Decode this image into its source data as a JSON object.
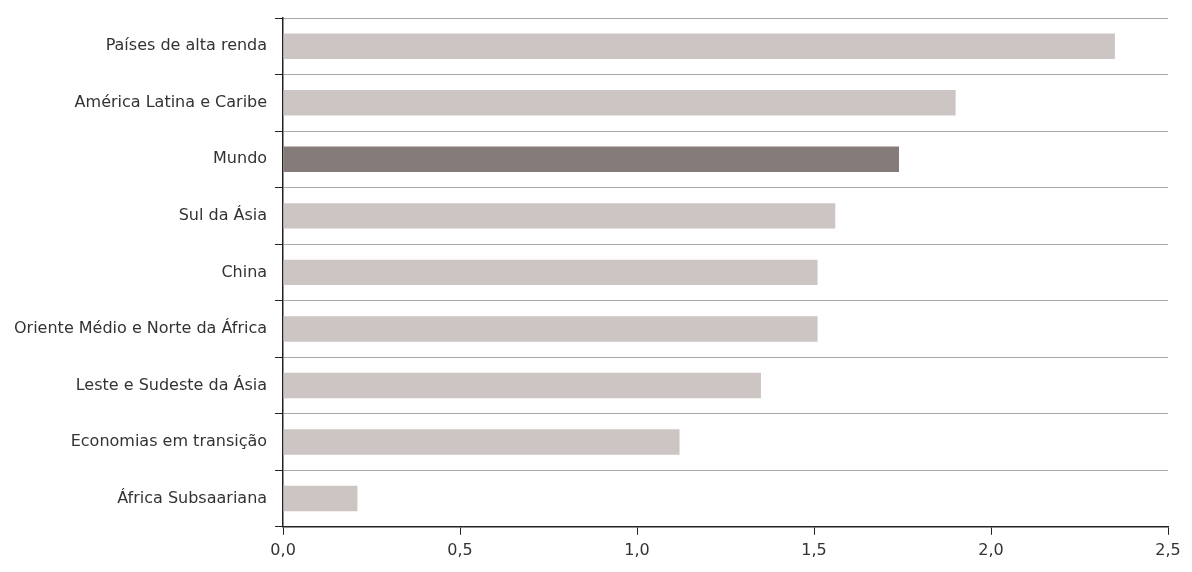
{
  "chart_data": {
    "type": "bar",
    "orientation": "horizontal",
    "categories": [
      "Países de alta renda",
      "América Latina e Caribe",
      "Mundo",
      "Sul da Ásia",
      "China",
      "Oriente Médio e Norte da África",
      "Leste e Sudeste da Ásia",
      "Economias em transição",
      "África Subsaariana"
    ],
    "values": [
      2.35,
      1.9,
      1.74,
      1.56,
      1.51,
      1.51,
      1.35,
      1.12,
      0.21
    ],
    "colors": [
      "#cdc5c4",
      "#cdc5c4",
      "#857b78",
      "#cdc5c4",
      "#cdc5c4",
      "#cdc5c4",
      "#cdc5c4",
      "#cdc5c4",
      "#cdc5c4"
    ],
    "xlim": [
      0,
      2.5
    ],
    "xticks": [
      {
        "value": 0,
        "label": "0,0"
      },
      {
        "value": 0.5,
        "label": "0,5"
      },
      {
        "value": 1,
        "label": "1,0"
      },
      {
        "value": 1.5,
        "label": "1,5"
      },
      {
        "value": 2,
        "label": "2,0"
      },
      {
        "value": 2.5,
        "label": "2,5"
      }
    ],
    "grid": "y",
    "legend": false
  }
}
